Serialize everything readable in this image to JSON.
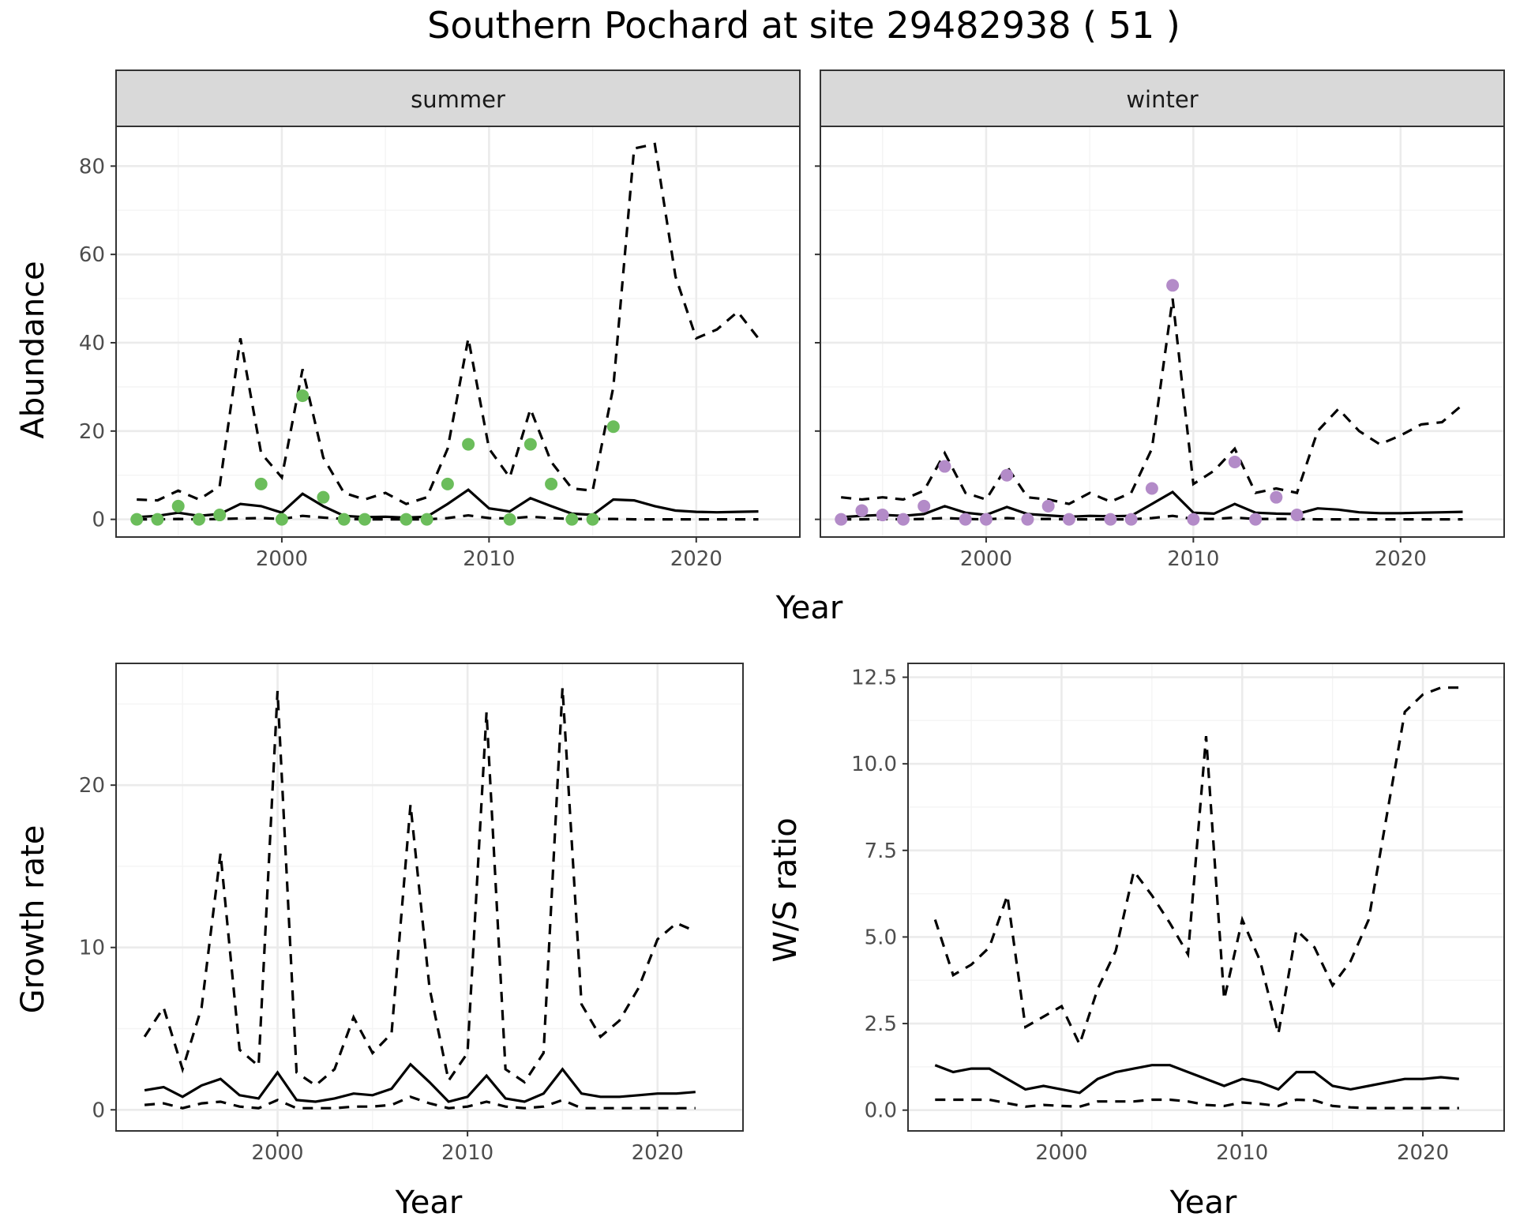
{
  "title": "Southern Pochard at site 29482938 ( 51 )",
  "colors": {
    "summer_points": "#6bbd5b",
    "winter_points": "#b38bc8",
    "lines": "#000000"
  },
  "chart_data": [
    {
      "type": "line",
      "facet": "summer",
      "xlabel": "Year",
      "ylabel": "Abundance",
      "xlim": [
        1992,
        2025
      ],
      "ylim": [
        -4,
        89
      ],
      "xticks": [
        2000,
        2010,
        2020
      ],
      "yticks": [
        0,
        20,
        40,
        60,
        80
      ],
      "grid": true,
      "points": {
        "x": [
          1993,
          1994,
          1995,
          1996,
          1997,
          1999,
          2000,
          2001,
          2002,
          2003,
          2004,
          2006,
          2007,
          2008,
          2009,
          2011,
          2012,
          2013,
          2014,
          2015,
          2016
        ],
        "y": [
          0,
          0,
          3,
          0,
          1,
          8,
          0,
          28,
          5,
          0,
          0,
          0,
          0,
          8,
          17,
          0,
          17,
          8,
          0,
          0,
          21
        ]
      },
      "series": [
        {
          "style": "solid",
          "x": [
            1993,
            1994,
            1995,
            1996,
            1997,
            1998,
            1999,
            2000,
            2001,
            2002,
            2003,
            2004,
            2005,
            2006,
            2007,
            2008,
            2009,
            2010,
            2011,
            2012,
            2013,
            2014,
            2015,
            2016,
            2017,
            2018,
            2019,
            2020,
            2021,
            2022,
            2023
          ],
          "y": [
            0.5,
            0.8,
            1.5,
            0.8,
            1.2,
            3.5,
            3.0,
            1.5,
            5.8,
            3.0,
            0.8,
            0.5,
            0.6,
            0.4,
            0.6,
            3.5,
            6.7,
            2.5,
            1.8,
            4.8,
            3.0,
            1.3,
            1.0,
            4.5,
            4.3,
            3.0,
            2.0,
            1.7,
            1.6,
            1.7,
            1.8
          ]
        },
        {
          "style": "dashed",
          "x": [
            1993,
            1994,
            1995,
            1996,
            1997,
            1998,
            1999,
            2000,
            2001,
            2002,
            2003,
            2004,
            2005,
            2006,
            2007,
            2008,
            2009,
            2010,
            2011,
            2012,
            2013,
            2014,
            2015,
            2016,
            2017,
            2018,
            2019,
            2020,
            2021,
            2022,
            2023
          ],
          "y": [
            4.5,
            4.3,
            6.5,
            4.5,
            7.5,
            41,
            15,
            9.5,
            34,
            14,
            6,
            4.5,
            6,
            3.5,
            5,
            16,
            41,
            16,
            9.5,
            25,
            13,
            7,
            6.5,
            30,
            84,
            85,
            55,
            41,
            43,
            47,
            41
          ]
        },
        {
          "style": "dashed",
          "x": [
            1993,
            1994,
            1995,
            1996,
            1997,
            1998,
            1999,
            2000,
            2001,
            2002,
            2003,
            2004,
            2005,
            2006,
            2007,
            2008,
            2009,
            2010,
            2011,
            2012,
            2013,
            2014,
            2015,
            2016,
            2017,
            2018,
            2019,
            2020,
            2021,
            2022,
            2023
          ],
          "y": [
            0,
            0,
            0.1,
            0,
            0.1,
            0.2,
            0.3,
            0.1,
            0.8,
            0.4,
            0.1,
            0,
            0,
            0,
            0,
            0.3,
            0.9,
            0.3,
            0.2,
            0.6,
            0.3,
            0.1,
            0.1,
            0.1,
            0,
            0,
            0,
            0,
            0,
            0,
            0
          ]
        }
      ]
    },
    {
      "type": "line",
      "facet": "winter",
      "xlabel": "Year",
      "ylabel": "Abundance",
      "xlim": [
        1992,
        2025
      ],
      "ylim": [
        -4,
        89
      ],
      "xticks": [
        2000,
        2010,
        2020
      ],
      "yticks": [
        0,
        20,
        40,
        60,
        80
      ],
      "grid": true,
      "points": {
        "x": [
          1993,
          1994,
          1995,
          1996,
          1997,
          1998,
          1999,
          2000,
          2001,
          2002,
          2003,
          2004,
          2006,
          2007,
          2008,
          2009,
          2010,
          2012,
          2013,
          2014,
          2015
        ],
        "y": [
          0,
          2,
          1,
          0,
          3,
          12,
          0,
          0,
          10,
          0,
          3,
          0,
          0,
          0,
          7,
          53,
          0,
          13,
          0,
          5,
          1
        ]
      },
      "series": [
        {
          "style": "solid",
          "x": [
            1993,
            1994,
            1995,
            1996,
            1997,
            1998,
            1999,
            2000,
            2001,
            2002,
            2003,
            2004,
            2005,
            2006,
            2007,
            2008,
            2009,
            2010,
            2011,
            2012,
            2013,
            2014,
            2015,
            2016,
            2017,
            2018,
            2019,
            2020,
            2021,
            2022,
            2023
          ],
          "y": [
            0.5,
            0.8,
            1.0,
            0.8,
            1.2,
            3.0,
            1.5,
            1.0,
            2.8,
            1.2,
            0.9,
            0.6,
            0.8,
            0.7,
            0.8,
            3.5,
            6.2,
            1.5,
            1.3,
            3.5,
            1.5,
            1.3,
            1.2,
            2.5,
            2.2,
            1.6,
            1.4,
            1.4,
            1.5,
            1.6,
            1.7
          ]
        },
        {
          "style": "dashed",
          "x": [
            1993,
            1994,
            1995,
            1996,
            1997,
            1998,
            1999,
            2000,
            2001,
            2002,
            2003,
            2004,
            2005,
            2006,
            2007,
            2008,
            2009,
            2010,
            2011,
            2012,
            2013,
            2014,
            2015,
            2016,
            2017,
            2018,
            2019,
            2020,
            2021,
            2022,
            2023
          ],
          "y": [
            5,
            4.5,
            5,
            4.5,
            6.5,
            15,
            6,
            4.5,
            12,
            5,
            4.5,
            3.5,
            6,
            4,
            6,
            16,
            50,
            8,
            11,
            16,
            6,
            7,
            6,
            20,
            25,
            20,
            17,
            19,
            21.5,
            22,
            26
          ]
        },
        {
          "style": "dashed",
          "x": [
            1993,
            1994,
            1995,
            1996,
            1997,
            1998,
            1999,
            2000,
            2001,
            2002,
            2003,
            2004,
            2005,
            2006,
            2007,
            2008,
            2009,
            2010,
            2011,
            2012,
            2013,
            2014,
            2015,
            2016,
            2017,
            2018,
            2019,
            2020,
            2021,
            2022,
            2023
          ],
          "y": [
            0,
            0,
            0.1,
            0,
            0.1,
            0.3,
            0.1,
            0,
            0.3,
            0.1,
            0.1,
            0,
            0,
            0,
            0,
            0.3,
            0.8,
            0.1,
            0.1,
            0.4,
            0.1,
            0.1,
            0.1,
            0,
            0,
            0,
            0,
            0,
            0,
            0,
            0
          ]
        }
      ]
    },
    {
      "type": "line",
      "xlabel": "Year",
      "ylabel": "Growth rate",
      "xlim": [
        1991.5,
        2024.5
      ],
      "ylim": [
        -1.3,
        27.5
      ],
      "xticks": [
        2000,
        2010,
        2020
      ],
      "yticks": [
        0,
        10,
        20
      ],
      "grid": true,
      "series": [
        {
          "style": "solid",
          "x": [
            1993,
            1994,
            1995,
            1996,
            1997,
            1998,
            1999,
            2000,
            2001,
            2002,
            2003,
            2004,
            2005,
            2006,
            2007,
            2008,
            2009,
            2010,
            2011,
            2012,
            2013,
            2014,
            2015,
            2016,
            2017,
            2018,
            2019,
            2020,
            2021,
            2022
          ],
          "y": [
            1.2,
            1.4,
            0.8,
            1.5,
            1.9,
            0.9,
            0.7,
            2.3,
            0.6,
            0.5,
            0.7,
            1.0,
            0.9,
            1.3,
            2.8,
            1.7,
            0.5,
            0.8,
            2.1,
            0.7,
            0.5,
            1.0,
            2.5,
            1.0,
            0.8,
            0.8,
            0.9,
            1.0,
            1.0,
            1.1
          ]
        },
        {
          "style": "dashed",
          "x": [
            1993,
            1994,
            1995,
            1996,
            1997,
            1998,
            1999,
            2000,
            2001,
            2002,
            2003,
            2004,
            2005,
            2006,
            2007,
            2008,
            2009,
            2010,
            2011,
            2012,
            2013,
            2014,
            2015,
            2016,
            2017,
            2018,
            2019,
            2020,
            2021,
            2022
          ],
          "y": [
            4.5,
            6.3,
            2.5,
            6.3,
            15.8,
            3.7,
            2.7,
            25.8,
            2.3,
            1.5,
            2.5,
            5.7,
            3.5,
            4.7,
            18.8,
            7.5,
            1.8,
            3.5,
            24.5,
            2.5,
            1.7,
            3.5,
            26,
            6.5,
            4.5,
            5.5,
            7.5,
            10.5,
            11.5,
            11
          ]
        },
        {
          "style": "dashed",
          "x": [
            1993,
            1994,
            1995,
            1996,
            1997,
            1998,
            1999,
            2000,
            2001,
            2002,
            2003,
            2004,
            2005,
            2006,
            2007,
            2008,
            2009,
            2010,
            2011,
            2012,
            2013,
            2014,
            2015,
            2016,
            2017,
            2018,
            2019,
            2020,
            2021,
            2022
          ],
          "y": [
            0.3,
            0.4,
            0.1,
            0.4,
            0.5,
            0.2,
            0.1,
            0.6,
            0.1,
            0.1,
            0.1,
            0.2,
            0.2,
            0.3,
            0.8,
            0.4,
            0.1,
            0.2,
            0.5,
            0.2,
            0.1,
            0.2,
            0.6,
            0.1,
            0.1,
            0.1,
            0.1,
            0.1,
            0.1,
            0.1
          ]
        }
      ]
    },
    {
      "type": "line",
      "xlabel": "Year",
      "ylabel": "W/S ratio",
      "xlim": [
        1991.5,
        2024.5
      ],
      "ylim": [
        -0.6,
        12.9
      ],
      "xticks": [
        2000,
        2010,
        2020
      ],
      "yticks": [
        0.0,
        2.5,
        5.0,
        7.5,
        10.0,
        12.5
      ],
      "grid": true,
      "series": [
        {
          "style": "solid",
          "x": [
            1993,
            1994,
            1995,
            1996,
            1997,
            1998,
            1999,
            2000,
            2001,
            2002,
            2003,
            2004,
            2005,
            2006,
            2007,
            2008,
            2009,
            2010,
            2011,
            2012,
            2013,
            2014,
            2015,
            2016,
            2017,
            2018,
            2019,
            2020,
            2021,
            2022
          ],
          "y": [
            1.3,
            1.1,
            1.2,
            1.2,
            0.9,
            0.6,
            0.7,
            0.6,
            0.5,
            0.9,
            1.1,
            1.2,
            1.3,
            1.3,
            1.1,
            0.9,
            0.7,
            0.9,
            0.8,
            0.6,
            1.1,
            1.1,
            0.7,
            0.6,
            0.7,
            0.8,
            0.9,
            0.9,
            0.95,
            0.9
          ]
        },
        {
          "style": "dashed",
          "x": [
            1993,
            1994,
            1995,
            1996,
            1997,
            1998,
            1999,
            2000,
            2001,
            2002,
            2003,
            2004,
            2005,
            2006,
            2007,
            2008,
            2009,
            2010,
            2011,
            2012,
            2013,
            2014,
            2015,
            2016,
            2017,
            2018,
            2019,
            2020,
            2021,
            2022
          ],
          "y": [
            5.5,
            3.9,
            4.2,
            4.7,
            6.2,
            2.4,
            2.7,
            3.0,
            1.9,
            3.5,
            4.6,
            6.9,
            6.2,
            5.4,
            4.5,
            10.8,
            3.2,
            5.5,
            4.3,
            2.2,
            5.2,
            4.7,
            3.6,
            4.3,
            5.5,
            8.5,
            11.5,
            12.0,
            12.2,
            12.2
          ]
        },
        {
          "style": "dashed",
          "x": [
            1993,
            1994,
            1995,
            1996,
            1997,
            1998,
            1999,
            2000,
            2001,
            2002,
            2003,
            2004,
            2005,
            2006,
            2007,
            2008,
            2009,
            2010,
            2011,
            2012,
            2013,
            2014,
            2015,
            2016,
            2017,
            2018,
            2019,
            2020,
            2021,
            2022
          ],
          "y": [
            0.3,
            0.3,
            0.3,
            0.3,
            0.2,
            0.1,
            0.15,
            0.12,
            0.1,
            0.25,
            0.25,
            0.25,
            0.3,
            0.3,
            0.25,
            0.15,
            0.12,
            0.22,
            0.18,
            0.12,
            0.3,
            0.28,
            0.12,
            0.08,
            0.06,
            0.06,
            0.06,
            0.06,
            0.06,
            0.06
          ]
        }
      ]
    }
  ]
}
